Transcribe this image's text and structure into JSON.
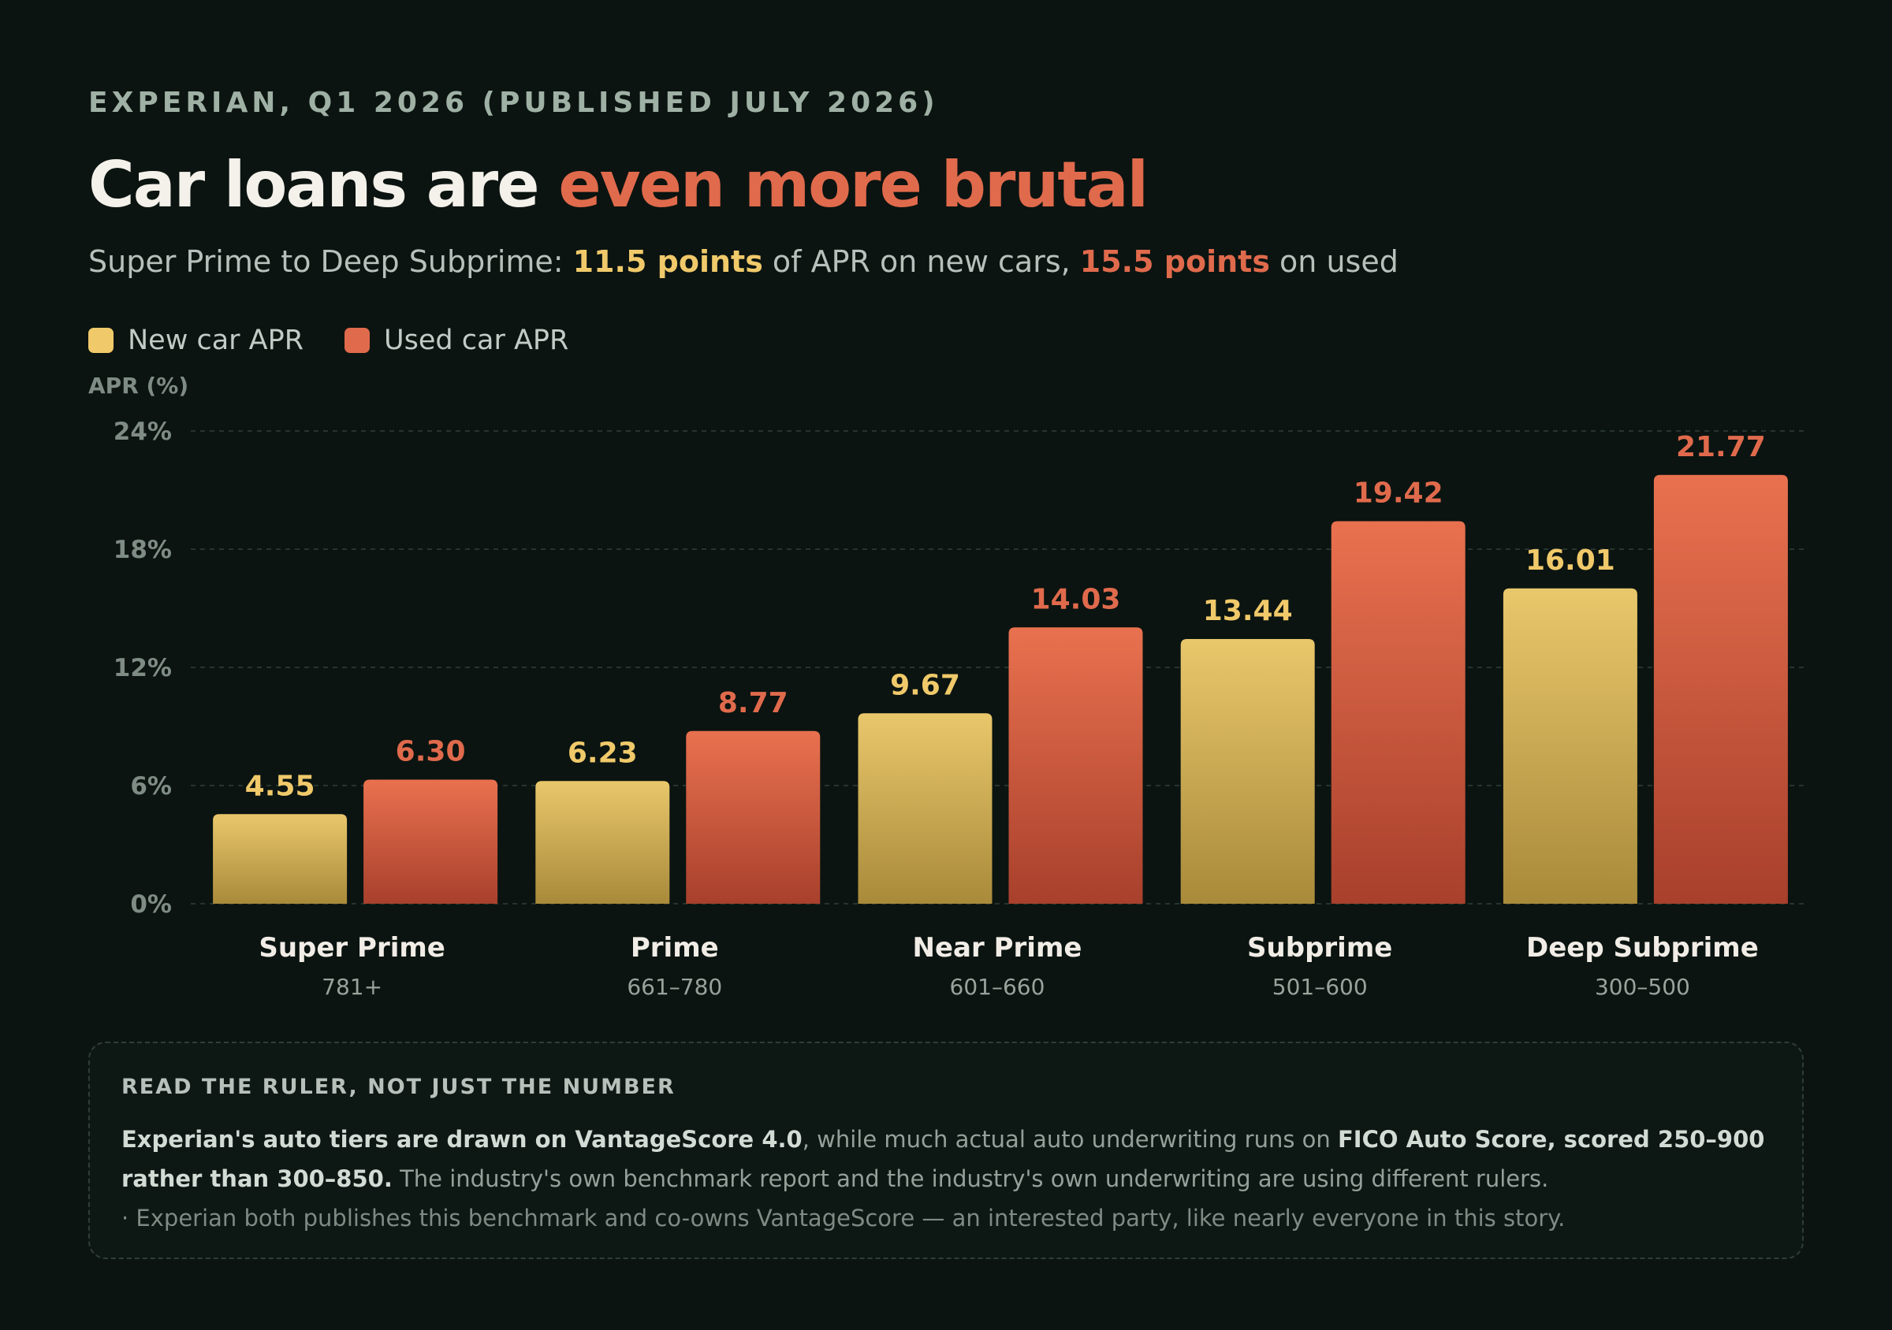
{
  "header": {
    "source": "EXPERIAN, Q1 2026 (PUBLISHED JULY 2026)",
    "title_plain": "Car loans are ",
    "title_accent": "even more brutal",
    "subtitle_prefix": "Super Prime to Deep Subprime: ",
    "subtitle_new_points": "11.5 points",
    "subtitle_middle": " of APR on new cars, ",
    "subtitle_used_points": "15.5 points",
    "subtitle_suffix": " on used"
  },
  "legend": {
    "new_label": "New car APR",
    "used_label": "Used car APR"
  },
  "colors": {
    "new_top": "#e9c76b",
    "new_bottom": "#a88a3a",
    "used_top": "#e9714f",
    "used_bottom": "#a8402c",
    "new_label": "#f0c96a",
    "used_label": "#e06a4c",
    "grid": "#26342e",
    "tick": "#7f8c85",
    "category": "#f1ede6",
    "range": "#98a39c"
  },
  "chart_data": {
    "type": "bar",
    "ylabel": "APR (%)",
    "ylim": [
      0,
      24
    ],
    "yticks": [
      0,
      6,
      12,
      18,
      24
    ],
    "ytick_labels": [
      "0%",
      "6%",
      "12%",
      "18%",
      "24%"
    ],
    "grid": true,
    "legend_position": "top-left",
    "categories": [
      "Super Prime",
      "Prime",
      "Near Prime",
      "Subprime",
      "Deep Subprime"
    ],
    "category_ranges": [
      "781+",
      "661–780",
      "601–660",
      "501–600",
      "300–500"
    ],
    "series": [
      {
        "name": "New car APR",
        "values": [
          4.55,
          6.23,
          9.67,
          13.44,
          16.01
        ],
        "labels": [
          "4.55",
          "6.23",
          "9.67",
          "13.44",
          "16.01"
        ]
      },
      {
        "name": "Used car APR",
        "values": [
          6.3,
          8.77,
          14.03,
          19.42,
          21.77
        ],
        "labels": [
          "6.30",
          "8.77",
          "14.03",
          "19.42",
          "21.77"
        ]
      }
    ]
  },
  "note": {
    "heading": "READ THE RULER, NOT JUST THE NUMBER",
    "b1": "Experian's auto tiers are drawn on VantageScore 4.0",
    "t1": ", while much actual auto underwriting runs on ",
    "b2": "FICO Auto Score, scored 250–900 rather than 300–850.",
    "t2": " The industry's own benchmark report and the industry's own underwriting are using different rulers.",
    "footnote": "· Experian both publishes this benchmark and co-owns VantageScore — an interested party, like nearly everyone in this story."
  }
}
